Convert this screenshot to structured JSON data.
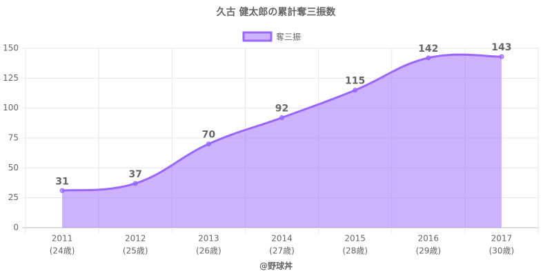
{
  "chart_data": {
    "type": "line",
    "title": "久古 健太郎の累計奪三振数",
    "categories": [
      "2011",
      "2012",
      "2013",
      "2014",
      "2015",
      "2016",
      "2017"
    ],
    "category_sublabels": [
      "(24歳)",
      "(25歳)",
      "(26歳)",
      "(27歳)",
      "(28歳)",
      "(29歳)",
      "(30歳)"
    ],
    "series": [
      {
        "name": "奪三振",
        "color": "#9966ff",
        "values": [
          31,
          37,
          70,
          92,
          115,
          142,
          143
        ]
      }
    ],
    "ylim": [
      0,
      150
    ],
    "yticks": [
      0,
      25,
      50,
      75,
      100,
      125,
      150
    ],
    "grid": true,
    "area": true,
    "legend": "top",
    "footer": "@野球丼"
  }
}
